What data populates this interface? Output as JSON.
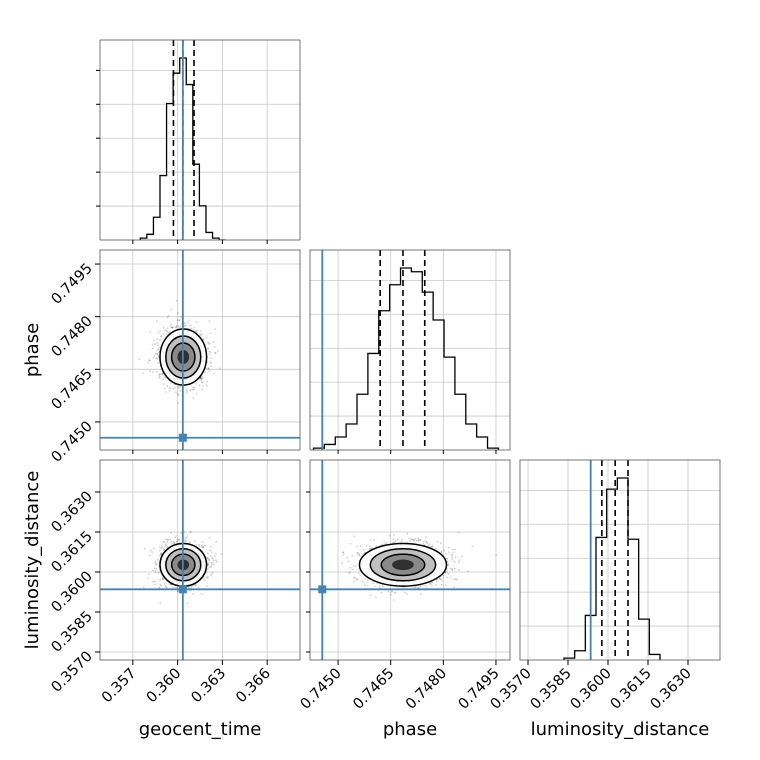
{
  "chart_data": {
    "type": "corner",
    "parameters": [
      "geocent_time",
      "phase",
      "luminosity_distance"
    ],
    "axis_labels": {
      "geocent_time": "geocent_time",
      "phase": "phase",
      "luminosity_distance": "luminosity_distance"
    },
    "ranges": {
      "geocent_time": [
        0.3548,
        0.3682
      ],
      "phase": [
        0.7442,
        0.7499
      ],
      "luminosity_distance": [
        0.3567,
        0.3642
      ]
    },
    "ticks": {
      "geocent_time": [
        "0.357",
        "0.360",
        "0.363",
        "0.366"
      ],
      "phase": [
        "0.7450",
        "0.7465",
        "0.7480",
        "0.7495"
      ],
      "luminosity_distance": [
        "0.3570",
        "0.3585",
        "0.3600",
        "0.3615",
        "0.3630"
      ]
    },
    "truths": {
      "geocent_time": 0.36035,
      "phase": 0.74455,
      "luminosity_distance": 0.35935
    },
    "truth_color": "#4682b4",
    "quantiles": {
      "geocent_time": [
        0.35972,
        0.36035,
        0.3611
      ],
      "phase": [
        0.7462,
        0.74685,
        0.74747
      ],
      "luminosity_distance": [
        0.35977,
        0.36027,
        0.36075
      ]
    },
    "histograms": {
      "geocent_time": {
        "edges": [
          0.3575,
          0.35794,
          0.35838,
          0.35882,
          0.35926,
          0.3597,
          0.36014,
          0.36058,
          0.36102,
          0.36146,
          0.3619,
          0.36234,
          0.36278,
          0.36322
        ],
        "counts": [
          1,
          3,
          12,
          34,
          72,
          88,
          96,
          82,
          40,
          18,
          4,
          1,
          0
        ]
      },
      "phase": {
        "edges": [
          0.7443,
          0.74461,
          0.74492,
          0.74523,
          0.74554,
          0.74585,
          0.74616,
          0.74647,
          0.74678,
          0.74709,
          0.7474,
          0.74771,
          0.74802,
          0.74833,
          0.74864,
          0.74895,
          0.74926,
          0.74957
        ],
        "counts": [
          1,
          3,
          7,
          14,
          30,
          52,
          75,
          89,
          98,
          96,
          85,
          70,
          50,
          30,
          14,
          7,
          1
        ]
      },
      "luminosity_distance": {
        "edges": [
          0.35835,
          0.35875,
          0.35915,
          0.35955,
          0.35995,
          0.36035,
          0.36075,
          0.36115,
          0.36155,
          0.36195
        ],
        "counts": [
          1,
          5,
          24,
          66,
          92,
          98,
          65,
          22,
          3
        ]
      }
    },
    "contours": [
      {
        "x": "geocent_time",
        "y": "phase",
        "center": [
          0.36038,
          0.74685
        ],
        "sigma": [
          0.00078,
          0.0004
        ],
        "levels": [
          0.5,
          1.0,
          1.5,
          2.0
        ]
      },
      {
        "x": "geocent_time",
        "y": "luminosity_distance",
        "center": [
          0.36038,
          0.36027
        ],
        "sigma": [
          0.00078,
          0.0004
        ],
        "levels": [
          0.5,
          1.0,
          1.5,
          2.0
        ]
      },
      {
        "x": "phase",
        "y": "luminosity_distance",
        "center": [
          0.74685,
          0.36027
        ],
        "sigma": [
          0.00062,
          0.0004
        ],
        "levels": [
          0.5,
          1.0,
          1.5,
          2.0
        ]
      }
    ],
    "grid": true,
    "legend": false
  }
}
